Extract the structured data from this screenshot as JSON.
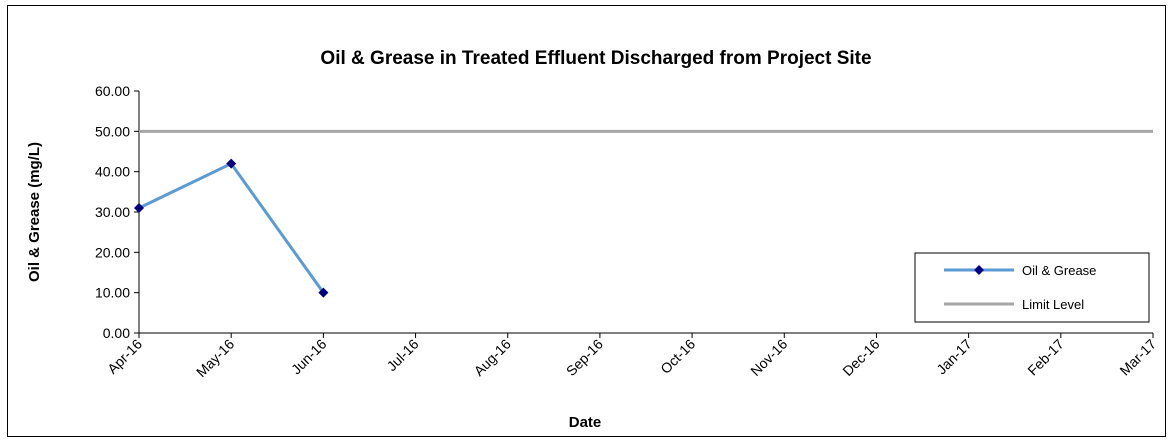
{
  "chart_data": {
    "type": "line",
    "title": "Oil & Grease in Treated Effluent Discharged from Project Site",
    "xlabel": "Date",
    "ylabel": "Oil & Grease (mg/L)",
    "categories": [
      "Apr-16",
      "May-16",
      "Jun-16",
      "Jul-16",
      "Aug-16",
      "Sep-16",
      "Oct-16",
      "Nov-16",
      "Dec-16",
      "Jan-17",
      "Feb-17",
      "Mar-17"
    ],
    "yticks": [
      "0.00",
      "10.00",
      "20.00",
      "30.00",
      "40.00",
      "50.00",
      "60.00"
    ],
    "ylim": [
      0,
      60
    ],
    "series": [
      {
        "name": "Oil & Grease",
        "values": [
          31,
          42,
          10,
          null,
          null,
          null,
          null,
          null,
          null,
          null,
          null,
          null
        ],
        "color": "#5b9bd5",
        "marker_color": "#000080"
      },
      {
        "name": "Limit Level",
        "values": [
          50,
          50,
          50,
          50,
          50,
          50,
          50,
          50,
          50,
          50,
          50,
          50
        ],
        "color": "#a6a6a6"
      }
    ],
    "grid": false,
    "legend_position": "right"
  }
}
